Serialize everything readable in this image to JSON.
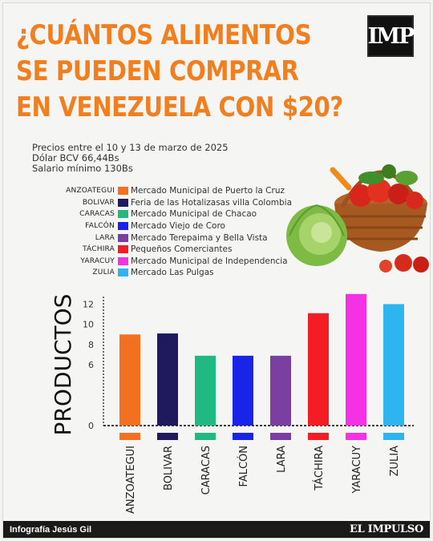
{
  "headline": {
    "line1": "¿CUÁNTOS ALIMENTOS",
    "line2": "SE PUEDEN COMPRAR",
    "line3": "EN VENEZUELA CON $20?"
  },
  "logo_text": "IMP",
  "info": {
    "line1": "Precios entre el 10  y 13 de marzo de 2025",
    "line2": "Dólar BCV 66,44Bs",
    "line3": "Salario mínimo 130Bs"
  },
  "legend": [
    {
      "code": "ANZOATEGUI",
      "name": "Mercado Municipal de Puerto la Cruz",
      "color": "#f37021"
    },
    {
      "code": "BOLIVAR",
      "name": "Feria de las Hotalizasas villa Colombia",
      "color": "#1f1a5e"
    },
    {
      "code": "CARACAS",
      "name": "Mercado Municipal de Chacao",
      "color": "#20b981"
    },
    {
      "code": "FALCÓN",
      "name": "Mercado Viejo de Coro",
      "color": "#1a24e8"
    },
    {
      "code": "LARA",
      "name": "Mercado Terepaima y Bella Vista",
      "color": "#7b3fa2"
    },
    {
      "code": "TÁCHIRA",
      "name": "Pequeños Comerciantes",
      "color": "#f51d24"
    },
    {
      "code": "YARACUY",
      "name": "Mercado Municipal de Independencia",
      "color": "#f531e5"
    },
    {
      "code": "ZULIA",
      "name": "Mercado Las Pulgas",
      "color": "#2eb5ef"
    }
  ],
  "chart_data": {
    "type": "bar",
    "ylabel": "PRODUCTOS",
    "xlabel": "",
    "categories": [
      "ANZOATEGUI",
      "BOLIVAR",
      "CARACAS",
      "FALCÓN",
      "LARA",
      "TÁCHIRA",
      "YARACUY",
      "ZULIA"
    ],
    "values": [
      9,
      9.1,
      6.9,
      6.9,
      6.9,
      11.1,
      13,
      12
    ],
    "colors": [
      "#f37021",
      "#1f1a5e",
      "#20b981",
      "#1a24e8",
      "#7b3fa2",
      "#f51d24",
      "#f531e5",
      "#2eb5ef"
    ],
    "yticks": [
      0,
      6,
      8,
      10,
      12
    ],
    "ylim": [
      0,
      13.3
    ],
    "grid": false,
    "legend": "top-left"
  },
  "footer": {
    "credit": "Infografía Jesús Gil",
    "brand": "EL IMPULSO"
  }
}
